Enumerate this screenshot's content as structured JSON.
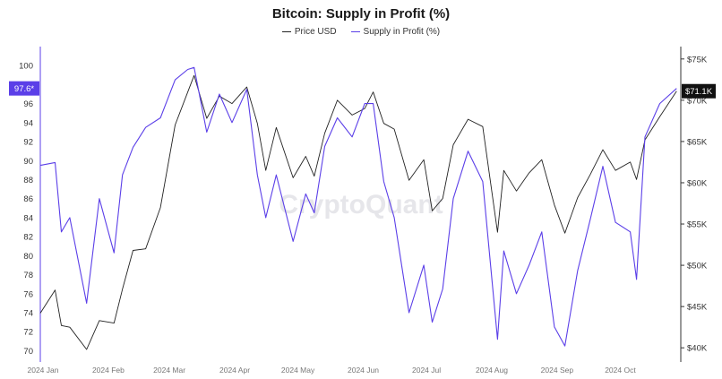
{
  "chart_data": {
    "type": "line",
    "title": "Bitcoin: Supply in Profit (%)",
    "watermark": "CryptoQuant",
    "legend": {
      "placement": "top-center"
    },
    "x_ticks": [
      "2024 Jan",
      "2024 Feb",
      "2024 Mar",
      "2024 Apr",
      "2024 May",
      "2024 Jun",
      "2024 Jul",
      "2024 Aug",
      "2024 Sep",
      "2024 Oct"
    ],
    "left_axis": {
      "range": [
        69,
        102
      ],
      "ticks": [
        "70",
        "72",
        "74",
        "76",
        "78",
        "80",
        "82",
        "84",
        "86",
        "88",
        "90",
        "92",
        "94",
        "96",
        "98",
        "100"
      ]
    },
    "right_axis": {
      "range": [
        38500,
        76500
      ],
      "ticks": [
        "$40K",
        "$45K",
        "$50K",
        "$55K",
        "$60K",
        "$65K",
        "$70K",
        "$75K"
      ]
    },
    "current_labels": {
      "supply": "97.6*",
      "price": "$71.1K"
    },
    "series": [
      {
        "name": "Price USD",
        "axis": "right",
        "color": "#222222",
        "x": [
          "2024-01-01",
          "2024-01-08",
          "2024-01-11",
          "2024-01-15",
          "2024-01-23",
          "2024-01-29",
          "2024-02-05",
          "2024-02-09",
          "2024-02-14",
          "2024-02-20",
          "2024-02-27",
          "2024-03-05",
          "2024-03-11",
          "2024-03-14",
          "2024-03-20",
          "2024-03-26",
          "2024-04-01",
          "2024-04-08",
          "2024-04-13",
          "2024-04-17",
          "2024-04-22",
          "2024-04-30",
          "2024-05-06",
          "2024-05-10",
          "2024-05-15",
          "2024-05-21",
          "2024-05-28",
          "2024-06-03",
          "2024-06-07",
          "2024-06-12",
          "2024-06-17",
          "2024-06-24",
          "2024-07-01",
          "2024-07-05",
          "2024-07-10",
          "2024-07-15",
          "2024-07-22",
          "2024-07-29",
          "2024-08-05",
          "2024-08-08",
          "2024-08-14",
          "2024-08-20",
          "2024-08-26",
          "2024-09-01",
          "2024-09-06",
          "2024-09-12",
          "2024-09-18",
          "2024-09-24",
          "2024-09-30",
          "2024-10-07",
          "2024-10-10",
          "2024-10-14",
          "2024-10-21",
          "2024-10-29"
        ],
        "values": [
          44200,
          47000,
          42700,
          42500,
          39800,
          43300,
          43000,
          47100,
          51800,
          52000,
          57000,
          67000,
          71000,
          73000,
          67800,
          70500,
          69600,
          71600,
          67200,
          61500,
          66700,
          60600,
          63200,
          60800,
          66000,
          70000,
          68200,
          69000,
          71000,
          67200,
          66500,
          60300,
          62800,
          56600,
          58100,
          64600,
          67700,
          66800,
          54000,
          61500,
          59000,
          61200,
          62800,
          57300,
          53900,
          58200,
          61000,
          64000,
          61500,
          62500,
          60400,
          65200,
          68000,
          71100
        ]
      },
      {
        "name": "Supply in Profit (%)",
        "axis": "left",
        "color": "#5b3fe8",
        "x": [
          "2024-01-01",
          "2024-01-08",
          "2024-01-11",
          "2024-01-15",
          "2024-01-23",
          "2024-01-29",
          "2024-02-05",
          "2024-02-09",
          "2024-02-14",
          "2024-02-20",
          "2024-02-27",
          "2024-03-05",
          "2024-03-11",
          "2024-03-14",
          "2024-03-20",
          "2024-03-26",
          "2024-04-01",
          "2024-04-08",
          "2024-04-13",
          "2024-04-17",
          "2024-04-22",
          "2024-04-30",
          "2024-05-06",
          "2024-05-10",
          "2024-05-15",
          "2024-05-21",
          "2024-05-28",
          "2024-06-03",
          "2024-06-07",
          "2024-06-12",
          "2024-06-17",
          "2024-06-24",
          "2024-07-01",
          "2024-07-05",
          "2024-07-10",
          "2024-07-15",
          "2024-07-22",
          "2024-07-29",
          "2024-08-05",
          "2024-08-08",
          "2024-08-14",
          "2024-08-20",
          "2024-08-26",
          "2024-09-01",
          "2024-09-06",
          "2024-09-12",
          "2024-09-18",
          "2024-09-24",
          "2024-09-30",
          "2024-10-07",
          "2024-10-10",
          "2024-10-14",
          "2024-10-21",
          "2024-10-29"
        ],
        "values": [
          89.5,
          89.8,
          82.5,
          84,
          75,
          86,
          80.3,
          88.5,
          91.4,
          93.5,
          94.5,
          98.5,
          99.6,
          99.8,
          93,
          97,
          94,
          97.5,
          88.5,
          84,
          88.5,
          81.5,
          86.5,
          84.5,
          91.5,
          94.5,
          92.5,
          96,
          96,
          87.8,
          84,
          74,
          79,
          73,
          76.5,
          86,
          91,
          87.8,
          71.2,
          80.5,
          76,
          79,
          82.5,
          72.5,
          70.5,
          78.4,
          83.8,
          89.4,
          83.5,
          82.5,
          77.5,
          92.5,
          96,
          97.6
        ]
      }
    ]
  }
}
